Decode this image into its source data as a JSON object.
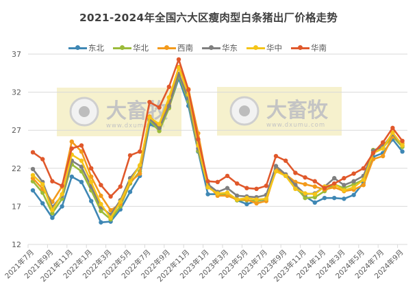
{
  "chart_data": {
    "type": "line",
    "title": "2021-2024年全国六大区瘦肉型白条猪出厂价格走势",
    "xlabel": "",
    "ylabel": "",
    "ylim": [
      12,
      37
    ],
    "yticks": [
      12,
      17,
      22,
      27,
      32,
      37
    ],
    "grid": true,
    "legend_position": "top",
    "x": [
      "2021年7月",
      "2021年8月",
      "2021年9月",
      "2021年10月",
      "2021年11月",
      "2021年12月",
      "2022年1月",
      "2022年2月",
      "2022年3月",
      "2022年4月",
      "2022年5月",
      "2022年6月",
      "2022年7月",
      "2022年8月",
      "2022年9月",
      "2022年10月",
      "2022年11月",
      "2022年12月",
      "2023年1月",
      "2023年2月",
      "2023年3月",
      "2023年4月",
      "2023年5月",
      "2023年6月",
      "2023年7月",
      "2023年8月",
      "2023年9月",
      "2023年10月",
      "2023年11月",
      "2023年12月",
      "2024年1月",
      "2024年2月",
      "2024年3月",
      "2024年4月",
      "2024年5月",
      "2024年6月",
      "2024年7月",
      "2024年8月",
      "2024年9月"
    ],
    "xtick_labels": [
      "2021年7月",
      "2021年9月",
      "2021年11月",
      "2022年1月",
      "2022年3月",
      "2022年5月",
      "2022年7月",
      "2022年9月",
      "2022年11月",
      "2023年1月",
      "2023年3月",
      "2023年5月",
      "2023年7月",
      "2023年9月",
      "2023年11月",
      "2024年1月",
      "2024年3月",
      "2024年5月",
      "2024年7月",
      "2024年9月"
    ],
    "series": [
      {
        "name": "东北",
        "color": "#3E87B4",
        "values": [
          19.1,
          17.4,
          15.5,
          17.0,
          20.9,
          20.2,
          17.7,
          14.9,
          15.0,
          16.6,
          18.9,
          21.0,
          27.8,
          27.2,
          30.0,
          33.8,
          30.2,
          24.2,
          18.6,
          18.6,
          18.7,
          17.8,
          17.3,
          17.7,
          17.9,
          21.8,
          21.0,
          19.4,
          18.3,
          17.5,
          18.1,
          18.1,
          18.0,
          18.5,
          20.1,
          23.5,
          24.0,
          25.8,
          24.2
        ]
      },
      {
        "name": "华北",
        "color": "#9BBB3A",
        "values": [
          20.3,
          18.8,
          16.1,
          18.0,
          22.5,
          21.6,
          19.1,
          16.4,
          15.3,
          17.0,
          20.0,
          21.6,
          28.3,
          26.9,
          29.9,
          34.2,
          30.8,
          24.3,
          19.7,
          18.6,
          18.6,
          17.8,
          17.8,
          17.7,
          18.0,
          22.0,
          21.1,
          19.6,
          18.1,
          18.2,
          19.0,
          19.9,
          19.4,
          19.9,
          20.5,
          24.4,
          24.7,
          26.2,
          24.8
        ]
      },
      {
        "name": "西南",
        "color": "#F39A1B",
        "values": [
          20.7,
          19.3,
          17.6,
          19.6,
          25.5,
          24.2,
          20.9,
          18.4,
          16.5,
          17.3,
          20.2,
          21.3,
          28.8,
          27.6,
          30.6,
          35.3,
          32.4,
          26.6,
          19.8,
          18.4,
          18.4,
          17.9,
          17.9,
          17.4,
          17.7,
          21.8,
          21.2,
          20.2,
          19.9,
          19.6,
          19.2,
          19.5,
          19.0,
          19.2,
          19.8,
          23.2,
          23.6,
          26.2,
          25.3
        ]
      },
      {
        "name": "华东",
        "color": "#7F7F7F",
        "values": [
          21.9,
          20.2,
          16.9,
          18.4,
          23.0,
          22.2,
          19.6,
          16.9,
          15.9,
          17.8,
          20.7,
          22.3,
          28.5,
          27.3,
          30.2,
          34.4,
          31.2,
          24.6,
          19.9,
          18.9,
          19.4,
          18.4,
          18.3,
          18.2,
          18.5,
          22.3,
          21.2,
          19.8,
          18.6,
          18.7,
          19.6,
          20.7,
          19.8,
          20.3,
          21.0,
          24.3,
          24.9,
          26.5,
          25.0
        ]
      },
      {
        "name": "华中",
        "color": "#F5C518",
        "values": [
          21.1,
          19.9,
          16.5,
          18.6,
          23.8,
          23.0,
          20.2,
          17.3,
          15.5,
          17.6,
          20.3,
          22.4,
          28.7,
          27.8,
          31.3,
          35.2,
          31.7,
          25.0,
          19.5,
          18.7,
          18.8,
          17.9,
          18.1,
          17.9,
          18.0,
          21.6,
          21.0,
          19.3,
          18.7,
          18.6,
          19.6,
          19.9,
          19.1,
          19.5,
          20.5,
          24.0,
          24.6,
          26.7,
          25.0
        ]
      },
      {
        "name": "华南",
        "color": "#E0582B",
        "values": [
          24.1,
          23.2,
          20.3,
          19.7,
          24.6,
          25.0,
          22.0,
          19.8,
          18.3,
          19.6,
          23.7,
          24.2,
          30.7,
          30.0,
          32.7,
          36.3,
          32.3,
          25.8,
          20.3,
          20.2,
          21.0,
          20.0,
          19.4,
          19.3,
          19.7,
          23.6,
          23.0,
          21.4,
          20.8,
          20.3,
          19.4,
          20.0,
          20.7,
          21.3,
          22.0,
          24.0,
          25.4,
          27.3,
          25.6
        ]
      }
    ]
  },
  "watermark": {
    "brand": "大畜牧",
    "url": "www.dxumu.com"
  },
  "colors": {
    "grid": "#D9D9D9",
    "axis_text": "#595959",
    "title": "#404040",
    "watermark_bg": "#F4EFC4"
  }
}
